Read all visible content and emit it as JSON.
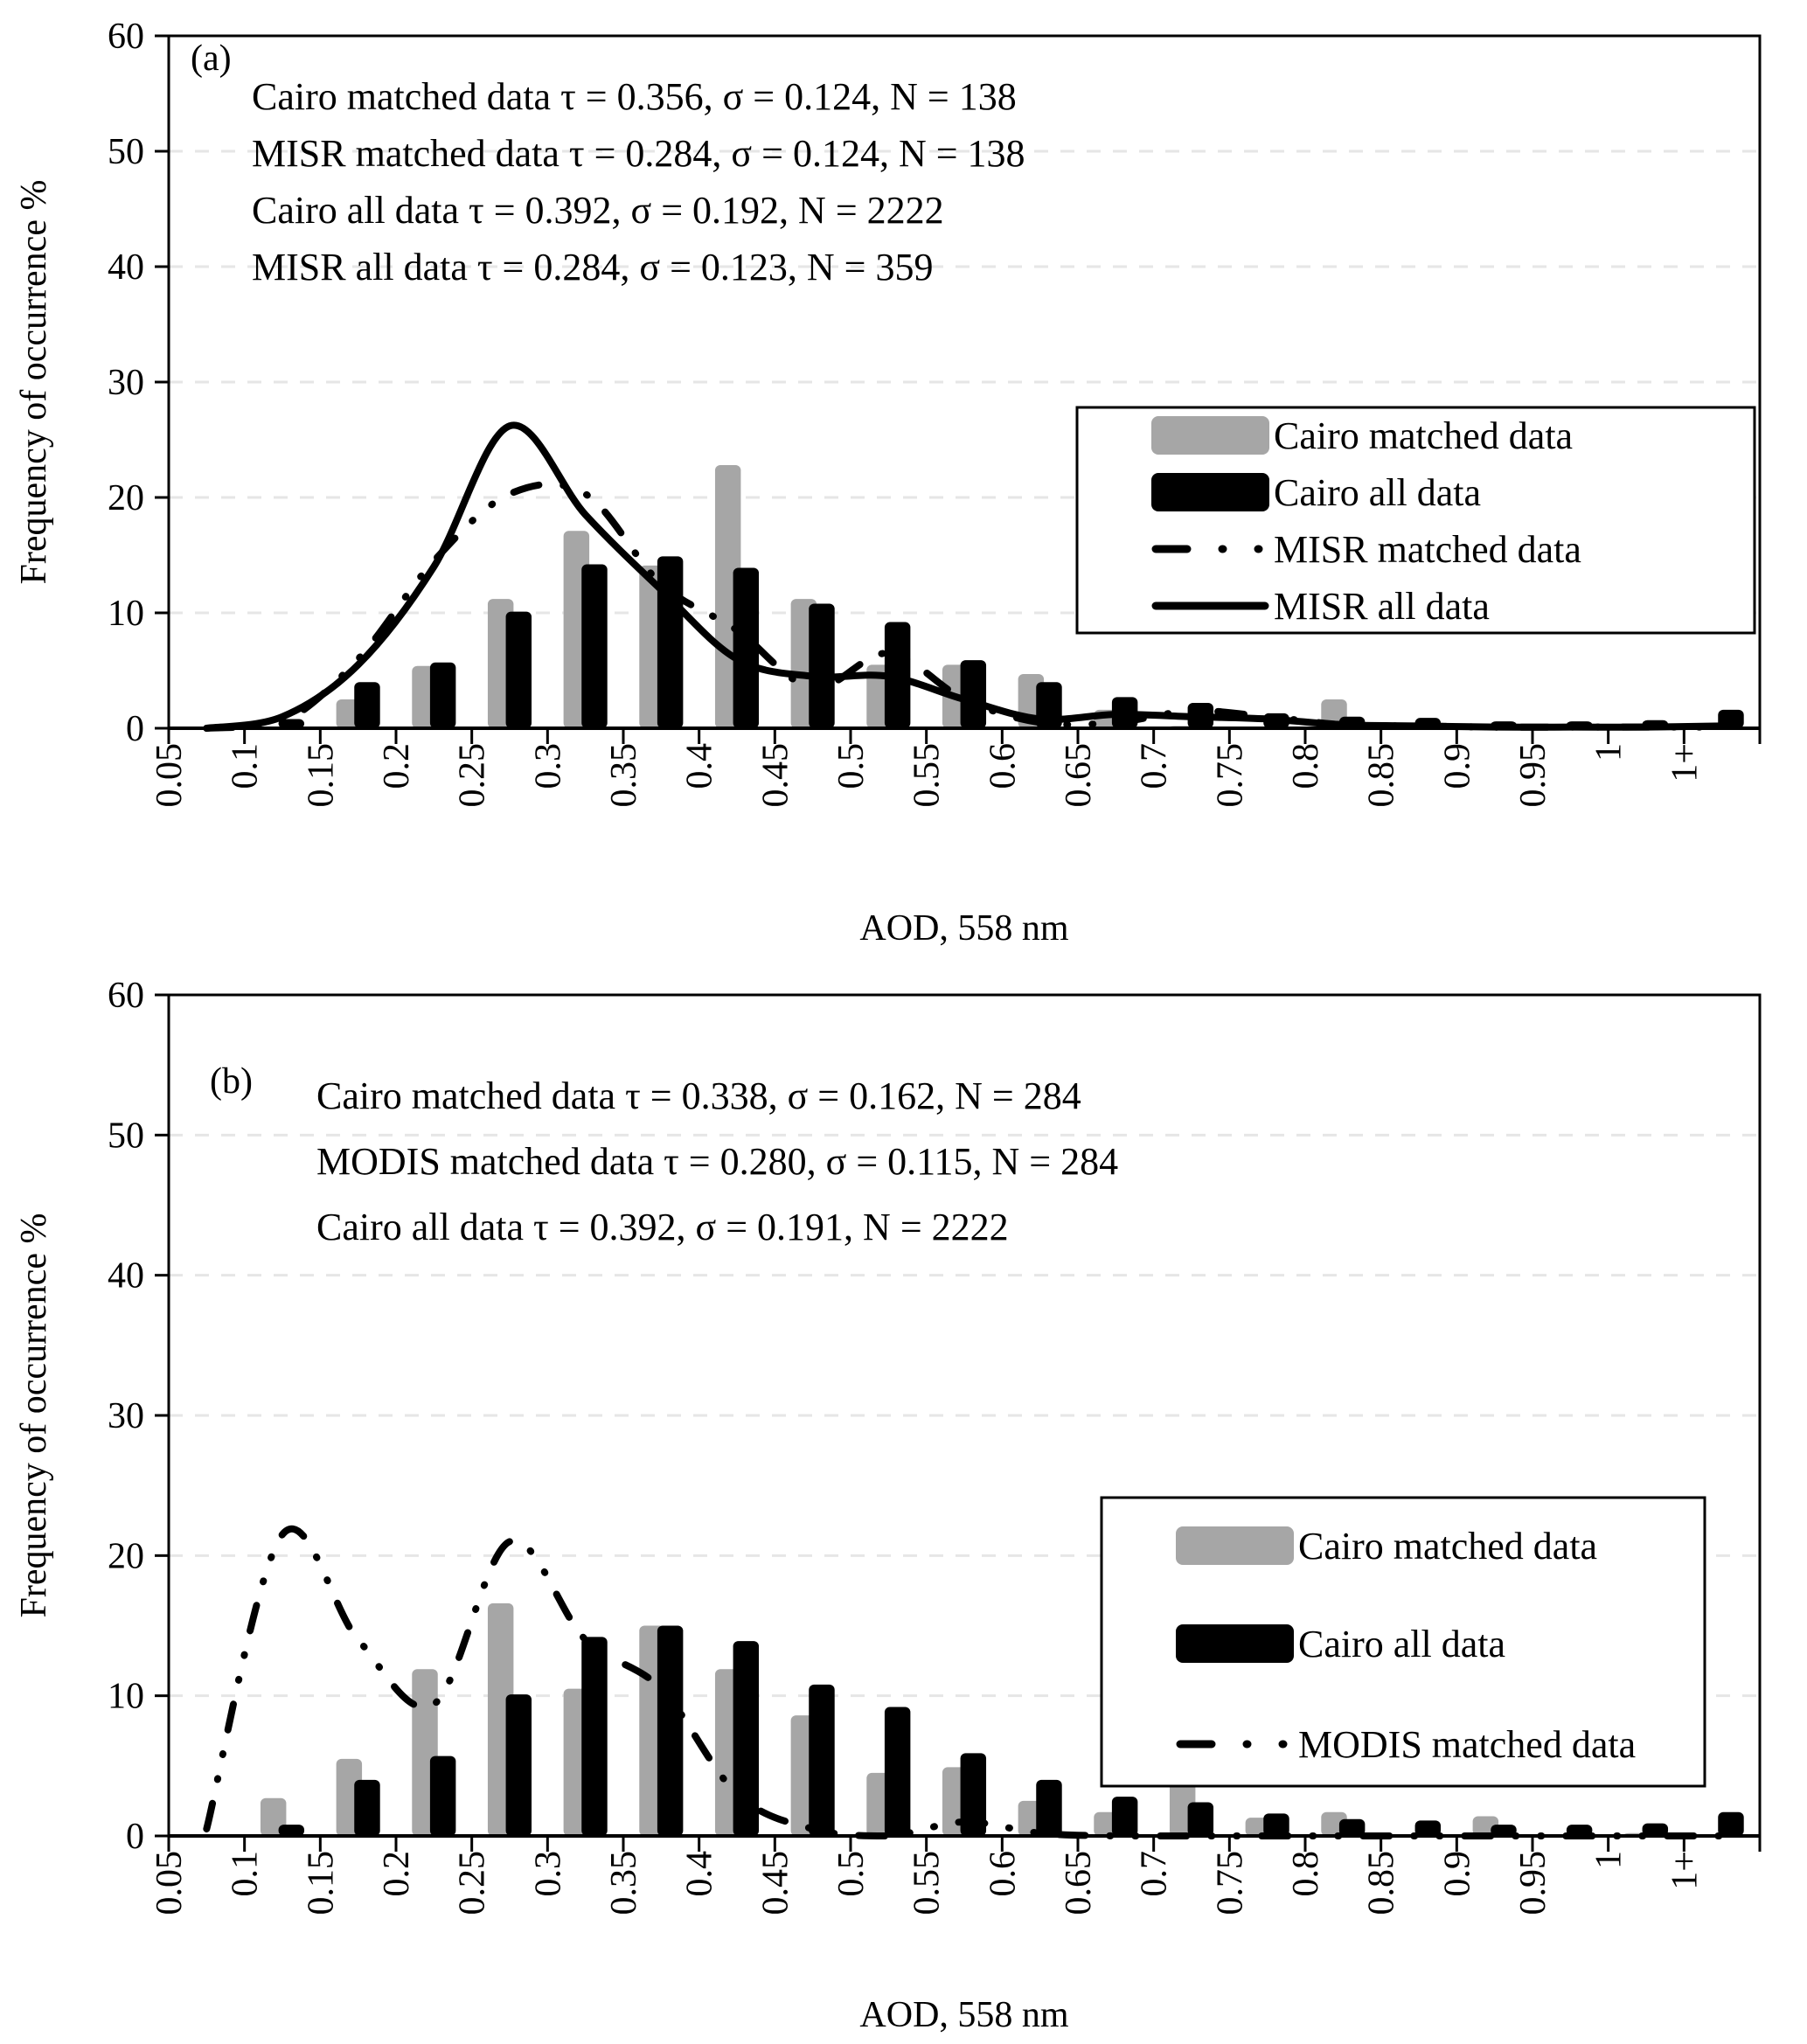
{
  "chart_data": [
    {
      "type": "bar",
      "panel_label": "(a)",
      "title": "",
      "xlabel": "AOD, 558 nm",
      "ylabel": "Frequency of occurrence %",
      "ylim": [
        0,
        60
      ],
      "yticks": [
        0,
        10,
        20,
        30,
        40,
        50,
        60
      ],
      "grid": true,
      "categories": [
        "0.05",
        "0.1",
        "0.15",
        "0.2",
        "0.25",
        "0.3",
        "0.35",
        "0.4",
        "0.45",
        "0.5",
        "0.55",
        "0.6",
        "0.65",
        "0.7",
        "0.75",
        "0.8",
        "0.85",
        "0.9",
        "0.95",
        "1",
        "1+"
      ],
      "annotations": [
        "Cairo matched data τ = 0.356, σ = 0.124, N = 138",
        "MISR matched data τ = 0.284, σ = 0.124, N = 138",
        "Cairo all data τ = 0.392, σ = 0.192, N = 2222",
        "MISR all data τ = 0.284, σ = 0.123, N = 359"
      ],
      "legend_position": "center-right",
      "series": [
        {
          "name": "Cairo matched data",
          "kind": "bar",
          "color": "#a6a6a6",
          "values": [
            0,
            0,
            2.5,
            5.4,
            11.2,
            17.1,
            14.1,
            22.8,
            11.2,
            5.5,
            5.5,
            4.7,
            1.6,
            0.2,
            0.1,
            2.5,
            0,
            0,
            0,
            0,
            0
          ]
        },
        {
          "name": "Cairo all data",
          "kind": "bar",
          "color": "#000000",
          "values": [
            0,
            0.8,
            4.0,
            5.7,
            10.1,
            14.2,
            14.9,
            13.9,
            10.8,
            9.2,
            5.9,
            4.0,
            2.7,
            2.2,
            1.3,
            1.0,
            0.9,
            0.6,
            0.6,
            0.7,
            1.6
          ]
        },
        {
          "name": "MISR matched data",
          "kind": "line",
          "dash": "dash-dot-dot",
          "color": "#000000",
          "values": [
            0,
            0.5,
            6.0,
            14.5,
            20.3,
            20.3,
            12.5,
            8.5,
            3.5,
            6.5,
            2.5,
            0.5,
            0.5,
            1.5,
            1.0,
            0.3,
            0.2,
            0.1,
            0.1,
            0.1,
            0.1
          ]
        },
        {
          "name": "MISR all data",
          "kind": "line",
          "dash": "solid",
          "color": "#000000",
          "values": [
            0,
            1.0,
            5.5,
            14.0,
            26.2,
            18.5,
            12.0,
            6.0,
            4.5,
            4.5,
            2.5,
            0.8,
            1.2,
            1.0,
            0.8,
            0.3,
            0.2,
            0.1,
            0.1,
            0.1,
            0.2
          ]
        }
      ]
    },
    {
      "type": "bar",
      "panel_label": "(b)",
      "title": "",
      "xlabel": "AOD, 558 nm",
      "ylabel": "Frequency of occurrence %",
      "ylim": [
        0,
        60
      ],
      "yticks": [
        0,
        10,
        20,
        30,
        40,
        50,
        60
      ],
      "grid": true,
      "categories": [
        "0.05",
        "0.1",
        "0.15",
        "0.2",
        "0.25",
        "0.3",
        "0.35",
        "0.4",
        "0.45",
        "0.5",
        "0.55",
        "0.6",
        "0.65",
        "0.7",
        "0.75",
        "0.8",
        "0.85",
        "0.9",
        "0.95",
        "1",
        "1+"
      ],
      "annotations": [
        "Cairo matched data τ = 0.338, σ = 0.162, N = 284",
        "MODIS matched data τ = 0.280, σ = 0.115, N = 284",
        "Cairo all data τ = 0.392, σ = 0.191, N = 2222"
      ],
      "legend_position": "center-right",
      "series": [
        {
          "name": "Cairo matched data",
          "kind": "bar",
          "color": "#a6a6a6",
          "values": [
            0,
            2.7,
            5.5,
            11.9,
            16.6,
            10.5,
            15.0,
            11.9,
            8.6,
            4.5,
            4.9,
            2.5,
            1.7,
            3.9,
            1.3,
            1.7,
            0,
            1.4,
            0,
            0.2,
            0
          ]
        },
        {
          "name": "Cairo all data",
          "kind": "bar",
          "color": "#000000",
          "values": [
            0,
            0.8,
            4.0,
            5.7,
            10.1,
            14.2,
            15.0,
            13.9,
            10.8,
            9.2,
            5.9,
            4.0,
            2.8,
            2.4,
            1.6,
            1.2,
            1.1,
            0.8,
            0.8,
            0.9,
            1.7
          ]
        },
        {
          "name": "MODIS matched data",
          "kind": "line",
          "dash": "dash-dot-dot",
          "color": "#000000",
          "values": [
            0.5,
            21.5,
            14.0,
            9.4,
            21.0,
            14.0,
            10.5,
            3.0,
            0.5,
            0,
            1.0,
            0.2,
            0,
            0,
            0,
            0,
            0,
            0,
            0,
            0,
            0
          ]
        }
      ]
    }
  ]
}
